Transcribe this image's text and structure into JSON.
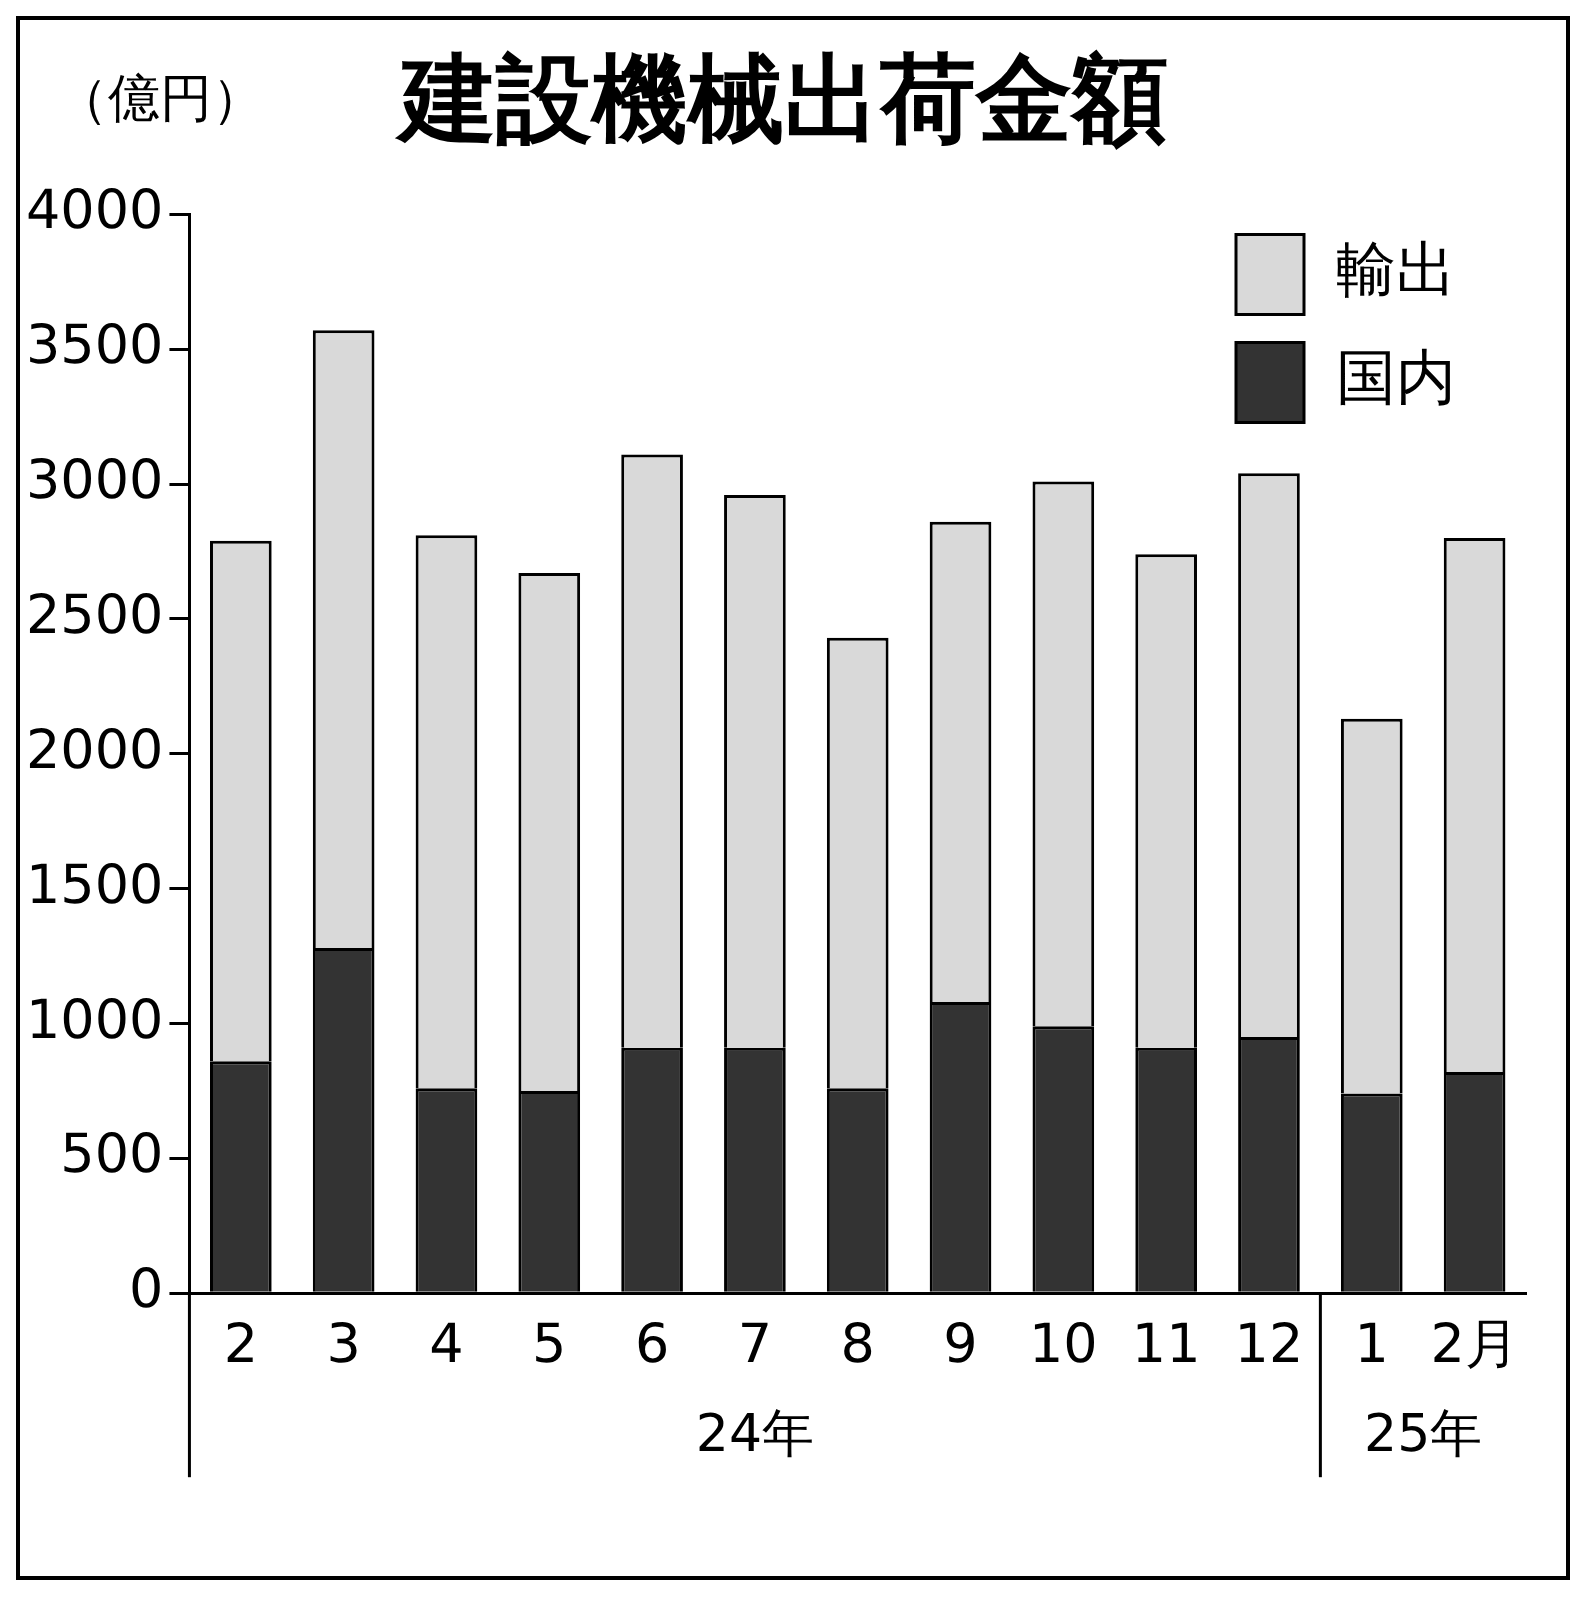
{
  "chart_data": {
    "type": "bar",
    "title": "建設機械出荷金額",
    "ylabel": "（億円）",
    "categories": [
      "2",
      "3",
      "4",
      "5",
      "6",
      "7",
      "8",
      "9",
      "10",
      "11",
      "12",
      "1",
      "2月"
    ],
    "stacked": true,
    "legend": "top right",
    "grid": false,
    "ylim": [
      0,
      4000
    ],
    "yticks": [
      0,
      500,
      1000,
      1500,
      2000,
      2500,
      3000,
      3500,
      4000
    ],
    "annotations": [
      "24年",
      "25年"
    ],
    "series": [
      {
        "name": "国内",
        "color": "#333333",
        "values": [
          860,
          1280,
          760,
          750,
          910,
          910,
          760,
          1080,
          990,
          910,
          950,
          740,
          820
        ]
      },
      {
        "name": "輸出",
        "color": "#d9d9d9",
        "values": [
          1930,
          2290,
          2050,
          1920,
          2200,
          2050,
          1670,
          1780,
          2020,
          1830,
          2090,
          1390,
          1980
        ]
      }
    ]
  }
}
